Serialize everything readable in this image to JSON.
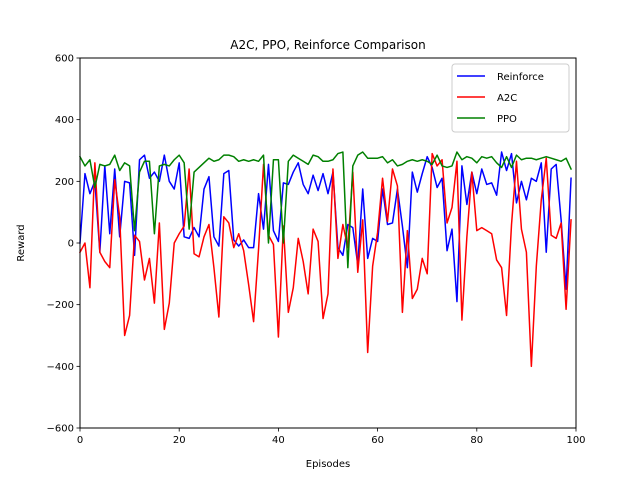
{
  "chart_data": {
    "type": "line",
    "title": "A2C, PPO, Reinforce Comparison",
    "xlabel": "Episodes",
    "ylabel": "Reward",
    "xlim": [
      0,
      100
    ],
    "ylim": [
      -600,
      600
    ],
    "xticks": [
      0,
      20,
      40,
      60,
      80,
      100
    ],
    "yticks": [
      -600,
      -400,
      -200,
      0,
      200,
      400,
      600
    ],
    "legend_position": "top-right",
    "grid": false,
    "series": [
      {
        "name": "Reinforce",
        "color": "#0000ff",
        "y": [
          0,
          225,
          160,
          200,
          -30,
          250,
          30,
          240,
          20,
          200,
          195,
          -40,
          270,
          285,
          210,
          230,
          200,
          285,
          200,
          175,
          260,
          20,
          15,
          50,
          20,
          175,
          215,
          20,
          -10,
          225,
          235,
          10,
          -10,
          10,
          -15,
          -15,
          160,
          45,
          255,
          40,
          5,
          195,
          190,
          230,
          260,
          190,
          160,
          220,
          170,
          225,
          160,
          230,
          -15,
          -40,
          60,
          50,
          -70,
          175,
          -50,
          15,
          5,
          175,
          60,
          65,
          175,
          55,
          -80,
          230,
          165,
          225,
          280,
          245,
          180,
          210,
          -25,
          45,
          -190,
          250,
          125,
          230,
          160,
          240,
          190,
          195,
          155,
          295,
          235,
          290,
          130,
          200,
          140,
          210,
          200,
          260,
          -30,
          240,
          255,
          75,
          -150,
          210
        ]
      },
      {
        "name": "A2C",
        "color": "#ff0000",
        "y": [
          -30,
          0,
          -145,
          260,
          -30,
          -60,
          -80,
          205,
          85,
          -300,
          -235,
          25,
          5,
          -120,
          -50,
          -195,
          65,
          -280,
          -195,
          0,
          30,
          55,
          240,
          -35,
          -45,
          20,
          60,
          -80,
          -240,
          85,
          65,
          -15,
          30,
          -25,
          -135,
          -255,
          -20,
          255,
          25,
          -5,
          -305,
          55,
          -225,
          -145,
          15,
          -60,
          -165,
          45,
          5,
          -245,
          -165,
          240,
          -50,
          60,
          -15,
          230,
          -95,
          75,
          -355,
          -75,
          35,
          210,
          70,
          240,
          185,
          -225,
          40,
          -180,
          -150,
          -50,
          -100,
          290,
          250,
          270,
          65,
          115,
          265,
          -250,
          20,
          230,
          40,
          50,
          40,
          30,
          -55,
          -80,
          -235,
          60,
          265,
          45,
          -30,
          -400,
          -75,
          140,
          275,
          25,
          15,
          65,
          -215,
          75
        ]
      },
      {
        "name": "PPO",
        "color": "#008000",
        "y": [
          280,
          250,
          270,
          180,
          255,
          250,
          255,
          285,
          235,
          260,
          250,
          40,
          230,
          265,
          265,
          30,
          250,
          255,
          250,
          270,
          285,
          260,
          45,
          230,
          245,
          260,
          275,
          265,
          270,
          285,
          285,
          280,
          265,
          270,
          265,
          270,
          265,
          285,
          0,
          270,
          270,
          0,
          265,
          285,
          275,
          265,
          255,
          285,
          280,
          265,
          265,
          270,
          290,
          295,
          -80,
          250,
          285,
          295,
          275,
          275,
          275,
          280,
          260,
          270,
          250,
          255,
          265,
          270,
          265,
          270,
          265,
          255,
          285,
          250,
          245,
          250,
          295,
          270,
          280,
          275,
          260,
          280,
          275,
          280,
          260,
          245,
          280,
          245,
          285,
          270,
          275,
          275,
          270,
          275,
          280,
          275,
          270,
          265,
          275,
          240
        ]
      }
    ]
  }
}
